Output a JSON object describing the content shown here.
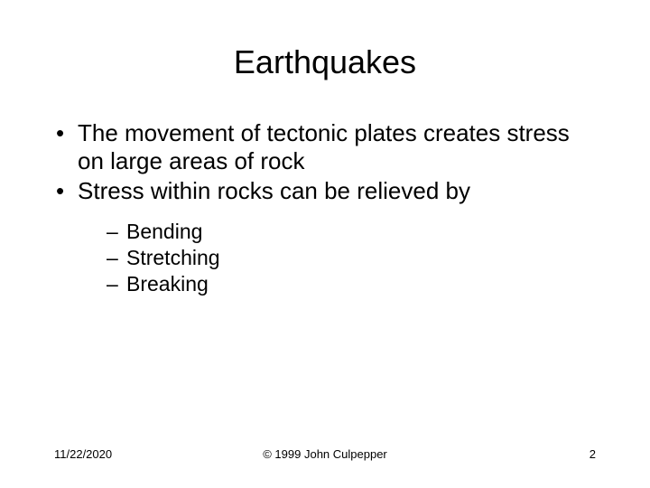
{
  "title": "Earthquakes",
  "bullets": {
    "b1": "The movement of tectonic plates creates stress on large areas of rock",
    "b2": "Stress within rocks can be relieved by",
    "sub1": "Bending",
    "sub2": "Stretching",
    "sub3": "Breaking"
  },
  "footer": {
    "date": "11/22/2020",
    "copyright": "© 1999 John Culpepper",
    "page": "2"
  },
  "style": {
    "background_color": "#ffffff",
    "text_color": "#000000",
    "title_fontsize": 36,
    "body_fontsize": 26,
    "sub_fontsize": 23,
    "footer_fontsize": 13,
    "font_family": "Arial"
  }
}
